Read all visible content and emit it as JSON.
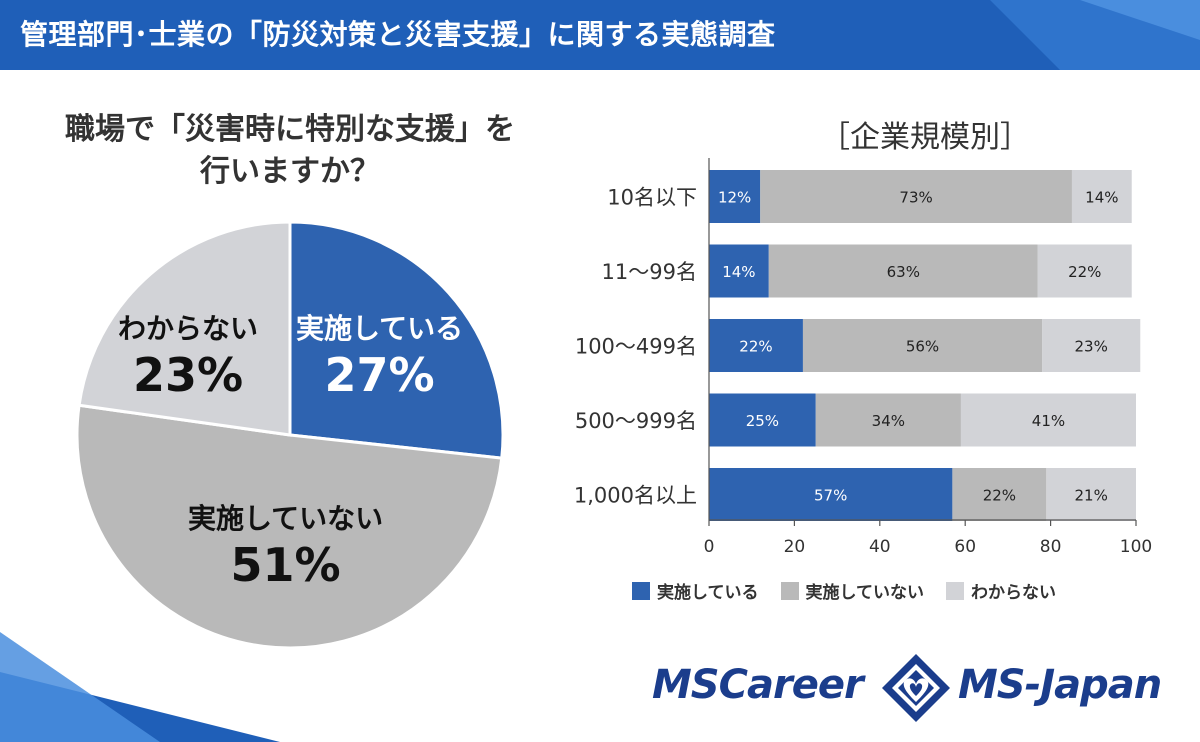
{
  "header": {
    "title": "管理部門･士業の「防災対策と災害支援」に関する実態調査"
  },
  "pie": {
    "title_line1": "職場で「災害時に特別な支援」を",
    "title_line2": "行いますか？",
    "slices": [
      {
        "label": "実施している",
        "pct_text": "27%",
        "value": 27,
        "color": "#2e63b0"
      },
      {
        "label": "実施していない",
        "pct_text": "51%",
        "value": 51,
        "color": "#b9b9b9"
      },
      {
        "label": "わからない",
        "pct_text": "23%",
        "value": 23,
        "color": "#d2d3d7"
      }
    ]
  },
  "chart_data": {
    "type": "bar",
    "orientation": "horizontal",
    "stacked": true,
    "title": "［企業規模別］",
    "categories": [
      "10名以下",
      "11〜99名",
      "100〜499名",
      "500〜999名",
      "1,000名以上"
    ],
    "series": [
      {
        "name": "実施している",
        "color": "#2e63b0",
        "values": [
          12,
          14,
          22,
          25,
          57
        ],
        "labels": [
          "12%",
          "14%",
          "22%",
          "25%",
          "57%"
        ]
      },
      {
        "name": "実施していない",
        "color": "#b9b9b9",
        "values": [
          73,
          63,
          56,
          34,
          22
        ],
        "labels": [
          "73%",
          "63%",
          "56%",
          "34%",
          "22%"
        ]
      },
      {
        "name": "わからない",
        "color": "#d2d3d7",
        "values": [
          14,
          22,
          23,
          41,
          21
        ],
        "labels": [
          "14%",
          "22%",
          "23%",
          "41%",
          "21%"
        ]
      }
    ],
    "xlim": [
      0,
      100
    ],
    "xticks": [
      "0",
      "20",
      "40",
      "60",
      "80",
      "100"
    ],
    "grid": false,
    "legend": "bottom"
  },
  "logos": {
    "left": "MSCareer",
    "right": "MS-Japan"
  }
}
